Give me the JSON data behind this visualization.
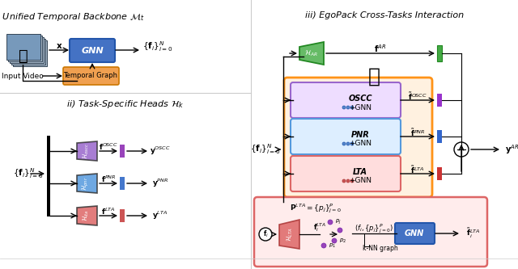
{
  "title_i": "i) Unified Temporal Backbone $\\mathcal{M}_t$",
  "title_ii": "ii) Task-Specific Heads $\\mathcal{H}_k$",
  "title_iii": "iii) EgoPack Cross-Tasks Interaction",
  "colors": {
    "gnn_blue": "#4472C4",
    "temporal_orange": "#F0A050",
    "oscc_purple": "#9966CC",
    "pnr_blue": "#5599DD",
    "lta_red": "#DD6666",
    "ar_green": "#66BB66",
    "outer_orange": "#FF8800",
    "inner_purple_bg": "#EEDDFF",
    "arrow": "#333333",
    "box_outline": "#333333",
    "plus_circle": "#AAAAAA",
    "white": "#FFFFFF",
    "light_gray": "#F5F5F5"
  }
}
